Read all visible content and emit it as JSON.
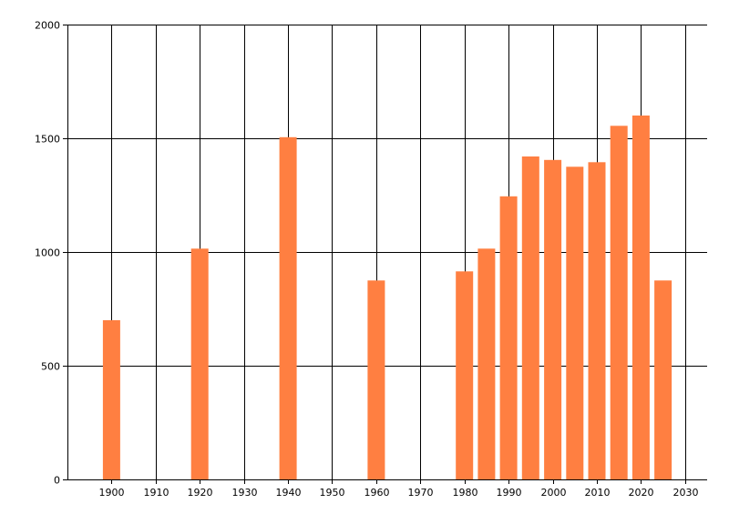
{
  "chart_data": {
    "type": "bar",
    "title": "",
    "xlabel": "",
    "ylabel": "",
    "xlim": [
      1890,
      2035
    ],
    "ylim": [
      0,
      2000
    ],
    "x_ticks": [
      1900,
      1910,
      1920,
      1930,
      1940,
      1950,
      1960,
      1970,
      1980,
      1990,
      2000,
      2010,
      2020,
      2030
    ],
    "y_ticks": [
      0,
      500,
      1000,
      1500,
      2000
    ],
    "grid": true,
    "bar_color": "#FF7F41",
    "points": [
      {
        "x": 1900,
        "y": 700
      },
      {
        "x": 1920,
        "y": 1015
      },
      {
        "x": 1940,
        "y": 1505
      },
      {
        "x": 1960,
        "y": 875
      },
      {
        "x": 1980,
        "y": 915
      },
      {
        "x": 1985,
        "y": 1015
      },
      {
        "x": 1990,
        "y": 1245
      },
      {
        "x": 1995,
        "y": 1420
      },
      {
        "x": 2000,
        "y": 1405
      },
      {
        "x": 2005,
        "y": 1375
      },
      {
        "x": 2010,
        "y": 1395
      },
      {
        "x": 2015,
        "y": 1555
      },
      {
        "x": 2020,
        "y": 1600
      },
      {
        "x": 2025,
        "y": 875
      }
    ]
  }
}
